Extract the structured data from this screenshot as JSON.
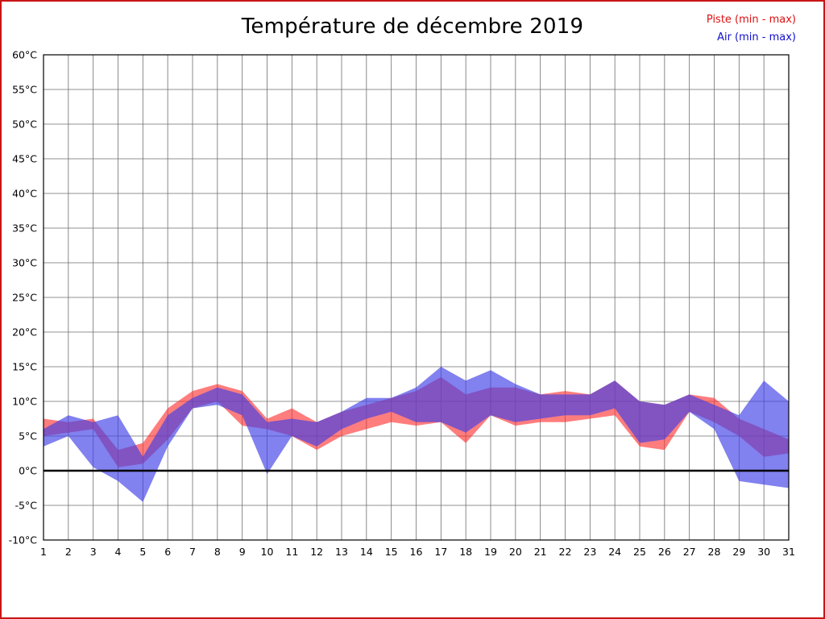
{
  "title": "Température de décembre 2019",
  "legend": {
    "piste": {
      "label": "Piste (min - max)",
      "color": "#dd1111"
    },
    "air": {
      "label": "Air (min - max)",
      "color": "#1111cc"
    }
  },
  "frame_color": "#c81414",
  "chart_data": {
    "type": "area",
    "title": "Température de décembre 2019",
    "xlabel": "",
    "ylabel": "",
    "x": [
      1,
      2,
      3,
      4,
      5,
      6,
      7,
      8,
      9,
      10,
      11,
      12,
      13,
      14,
      15,
      16,
      17,
      18,
      19,
      20,
      21,
      22,
      23,
      24,
      25,
      26,
      27,
      28,
      29,
      30,
      31
    ],
    "x_tick_labels": [
      "1",
      "2",
      "3",
      "4",
      "5",
      "6",
      "7",
      "8",
      "9",
      "10",
      "11",
      "12",
      "13",
      "14",
      "15",
      "16",
      "17",
      "18",
      "19",
      "20",
      "21",
      "22",
      "23",
      "24",
      "25",
      "26",
      "27",
      "28",
      "29",
      "30",
      "31"
    ],
    "y_ticks": [
      60,
      55,
      50,
      45,
      40,
      35,
      30,
      25,
      20,
      15,
      10,
      5,
      0,
      -5,
      -10
    ],
    "y_tick_labels": [
      "60°C",
      "55°C",
      "50°C",
      "45°C",
      "40°C",
      "35°C",
      "30°C",
      "25°C",
      "20°C",
      "15°C",
      "10°C",
      "5°C",
      "0°C",
      "-5°C",
      "-10°C"
    ],
    "ylim": [
      -10,
      60
    ],
    "grid": true,
    "zero_line": 0,
    "legend_position": "top-right",
    "series": [
      {
        "id": "piste",
        "name": "Piste (min - max)",
        "fill": "rgba(255,45,45,0.62)",
        "min": [
          5,
          5.5,
          6,
          0.5,
          1,
          4.5,
          9,
          10,
          6.5,
          6,
          5,
          3,
          5,
          6,
          7,
          6.5,
          7,
          4,
          8,
          6.5,
          7,
          7,
          7.5,
          8,
          3.5,
          3,
          8.5,
          7,
          5,
          2,
          2.5
        ],
        "max": [
          7.5,
          7,
          7.5,
          3,
          4,
          9,
          11.5,
          12.5,
          11.5,
          7.5,
          9,
          7,
          8.5,
          9.5,
          10.5,
          11.5,
          13.5,
          11,
          12,
          12,
          11,
          11.5,
          11,
          13,
          10,
          9.5,
          11,
          10.5,
          7.5,
          6,
          4.5
        ]
      },
      {
        "id": "air",
        "name": "Air (min - max)",
        "fill": "rgba(64,64,230,0.66)",
        "min": [
          3.5,
          5,
          0.5,
          -1.5,
          -4.5,
          3.5,
          9,
          9.5,
          8,
          -0.5,
          5,
          3.5,
          6,
          7.5,
          8.5,
          7,
          7,
          5.5,
          8,
          7,
          7.5,
          8,
          8,
          9,
          4,
          4.5,
          8.5,
          6,
          -1.5,
          -2,
          -2.5
        ],
        "max": [
          6,
          8,
          7,
          8,
          2,
          8,
          10.5,
          12,
          11,
          7,
          7.5,
          7,
          8.5,
          10.5,
          10.5,
          12,
          15,
          13,
          14.5,
          12.5,
          11,
          11,
          11,
          13,
          10,
          9.5,
          11,
          9.5,
          8,
          13,
          10
        ]
      }
    ]
  }
}
